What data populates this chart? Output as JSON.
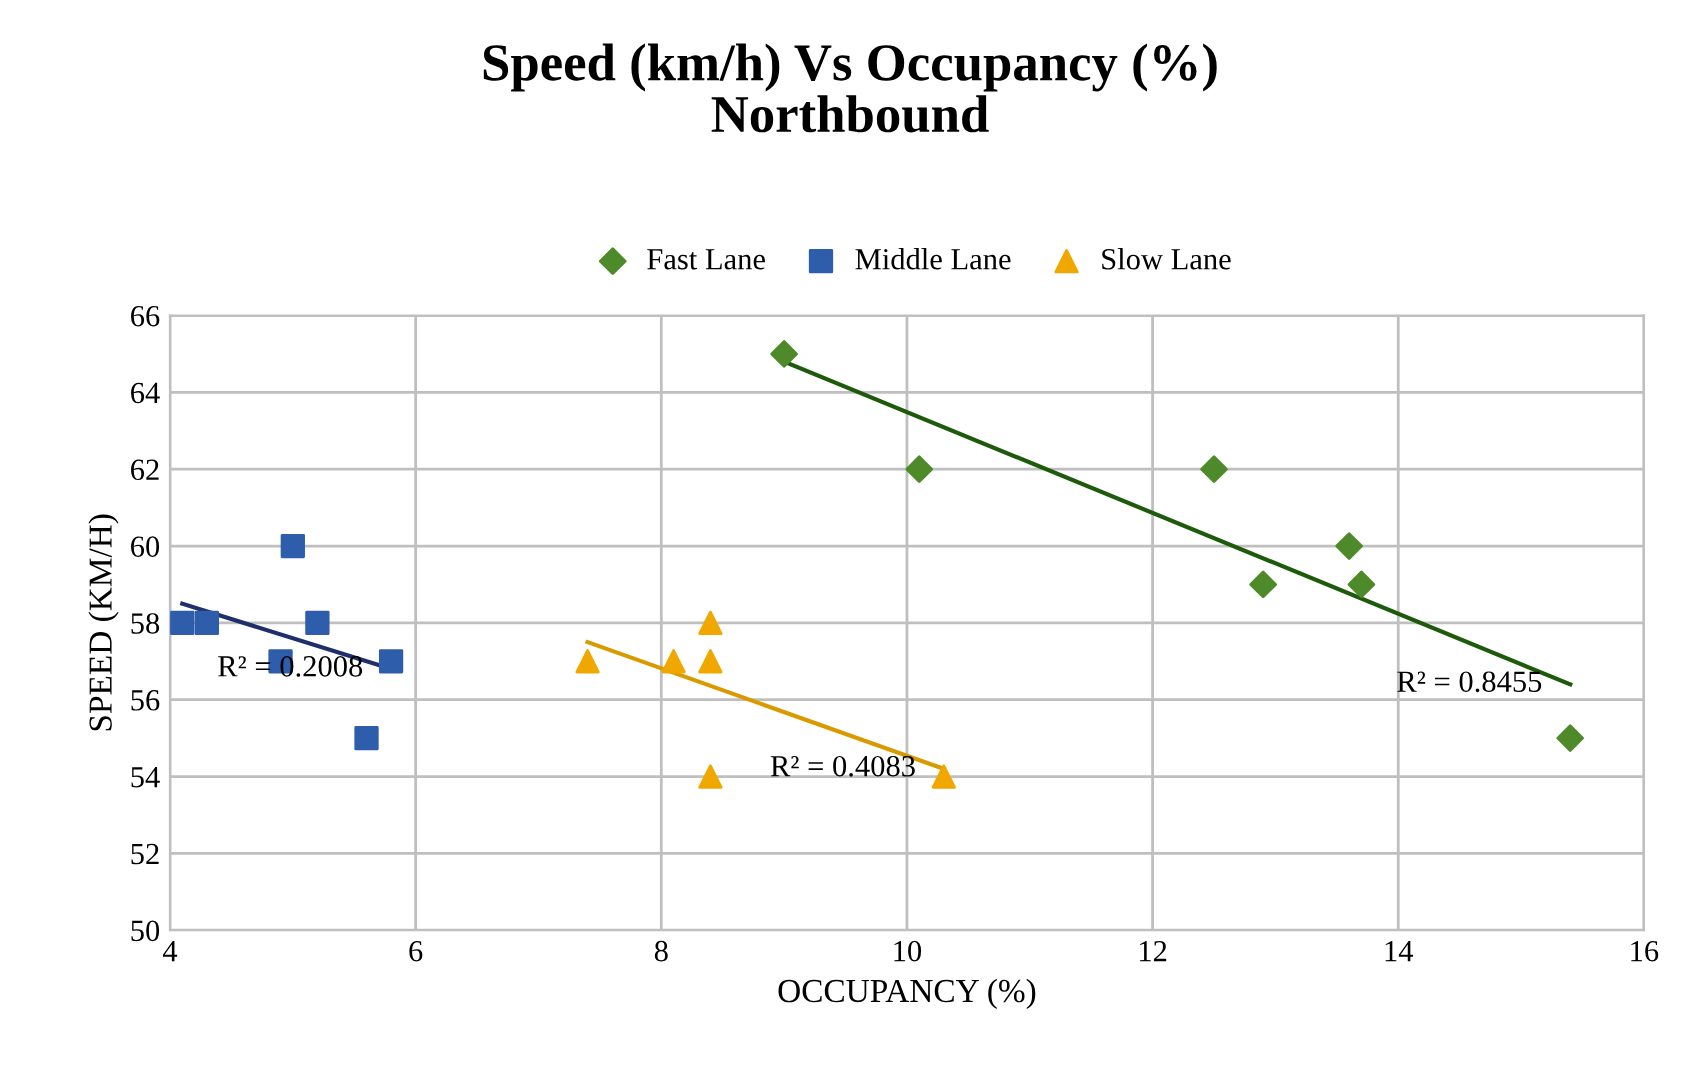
{
  "chart_data": {
    "type": "scatter",
    "title": "Speed (km/h) Vs Occupancy (%)\nNorthbound",
    "xlabel": "OCCUPANCY (%)",
    "ylabel": "SPEED (KM/H)",
    "xlim": [
      4,
      16
    ],
    "xticks": [
      4,
      6,
      8,
      10,
      12,
      14,
      16
    ],
    "ylim": [
      50,
      66
    ],
    "yticks": [
      50,
      52,
      54,
      56,
      58,
      60,
      62,
      64,
      66
    ],
    "grid": true,
    "legend": "top",
    "series": [
      {
        "name": "Fast Lane",
        "color": "#4e8a2a",
        "marker": "diamond",
        "x": [
          9.0,
          10.1,
          12.5,
          12.9,
          13.6,
          13.7,
          15.4
        ],
        "values": [
          65,
          62,
          62,
          59,
          60,
          59,
          55
        ]
      },
      {
        "name": "Middle Lane",
        "color": "#2e5dab",
        "marker": "square",
        "x": [
          4.1,
          4.3,
          5.0,
          5.2,
          4.9,
          5.8,
          5.6
        ],
        "values": [
          58,
          58,
          60,
          58,
          57,
          57,
          55
        ]
      },
      {
        "name": "Slow Lane",
        "color": "#f0a800",
        "marker": "triangle",
        "x": [
          7.4,
          8.1,
          8.4,
          8.4,
          8.4,
          10.3
        ],
        "values": [
          57,
          57,
          58,
          57,
          54,
          54
        ]
      },
      {
        "type": "line",
        "color": "#1e5a0c",
        "marker": "none",
        "x": [
          9.0,
          15.4
        ],
        "values": [
          64.8,
          56.4
        ]
      },
      {
        "type": "line",
        "color": "#1f2f6b",
        "marker": "none",
        "x": [
          4.1,
          5.8
        ],
        "values": [
          58.5,
          56.8
        ]
      },
      {
        "type": "line",
        "color": "#d99a00",
        "marker": "none",
        "x": [
          7.4,
          10.3
        ],
        "values": [
          57.5,
          54.2
        ]
      }
    ],
    "annotations": [
      "R² = 0.8455",
      "R² = 0.2008",
      "R² = 0.4083"
    ]
  }
}
